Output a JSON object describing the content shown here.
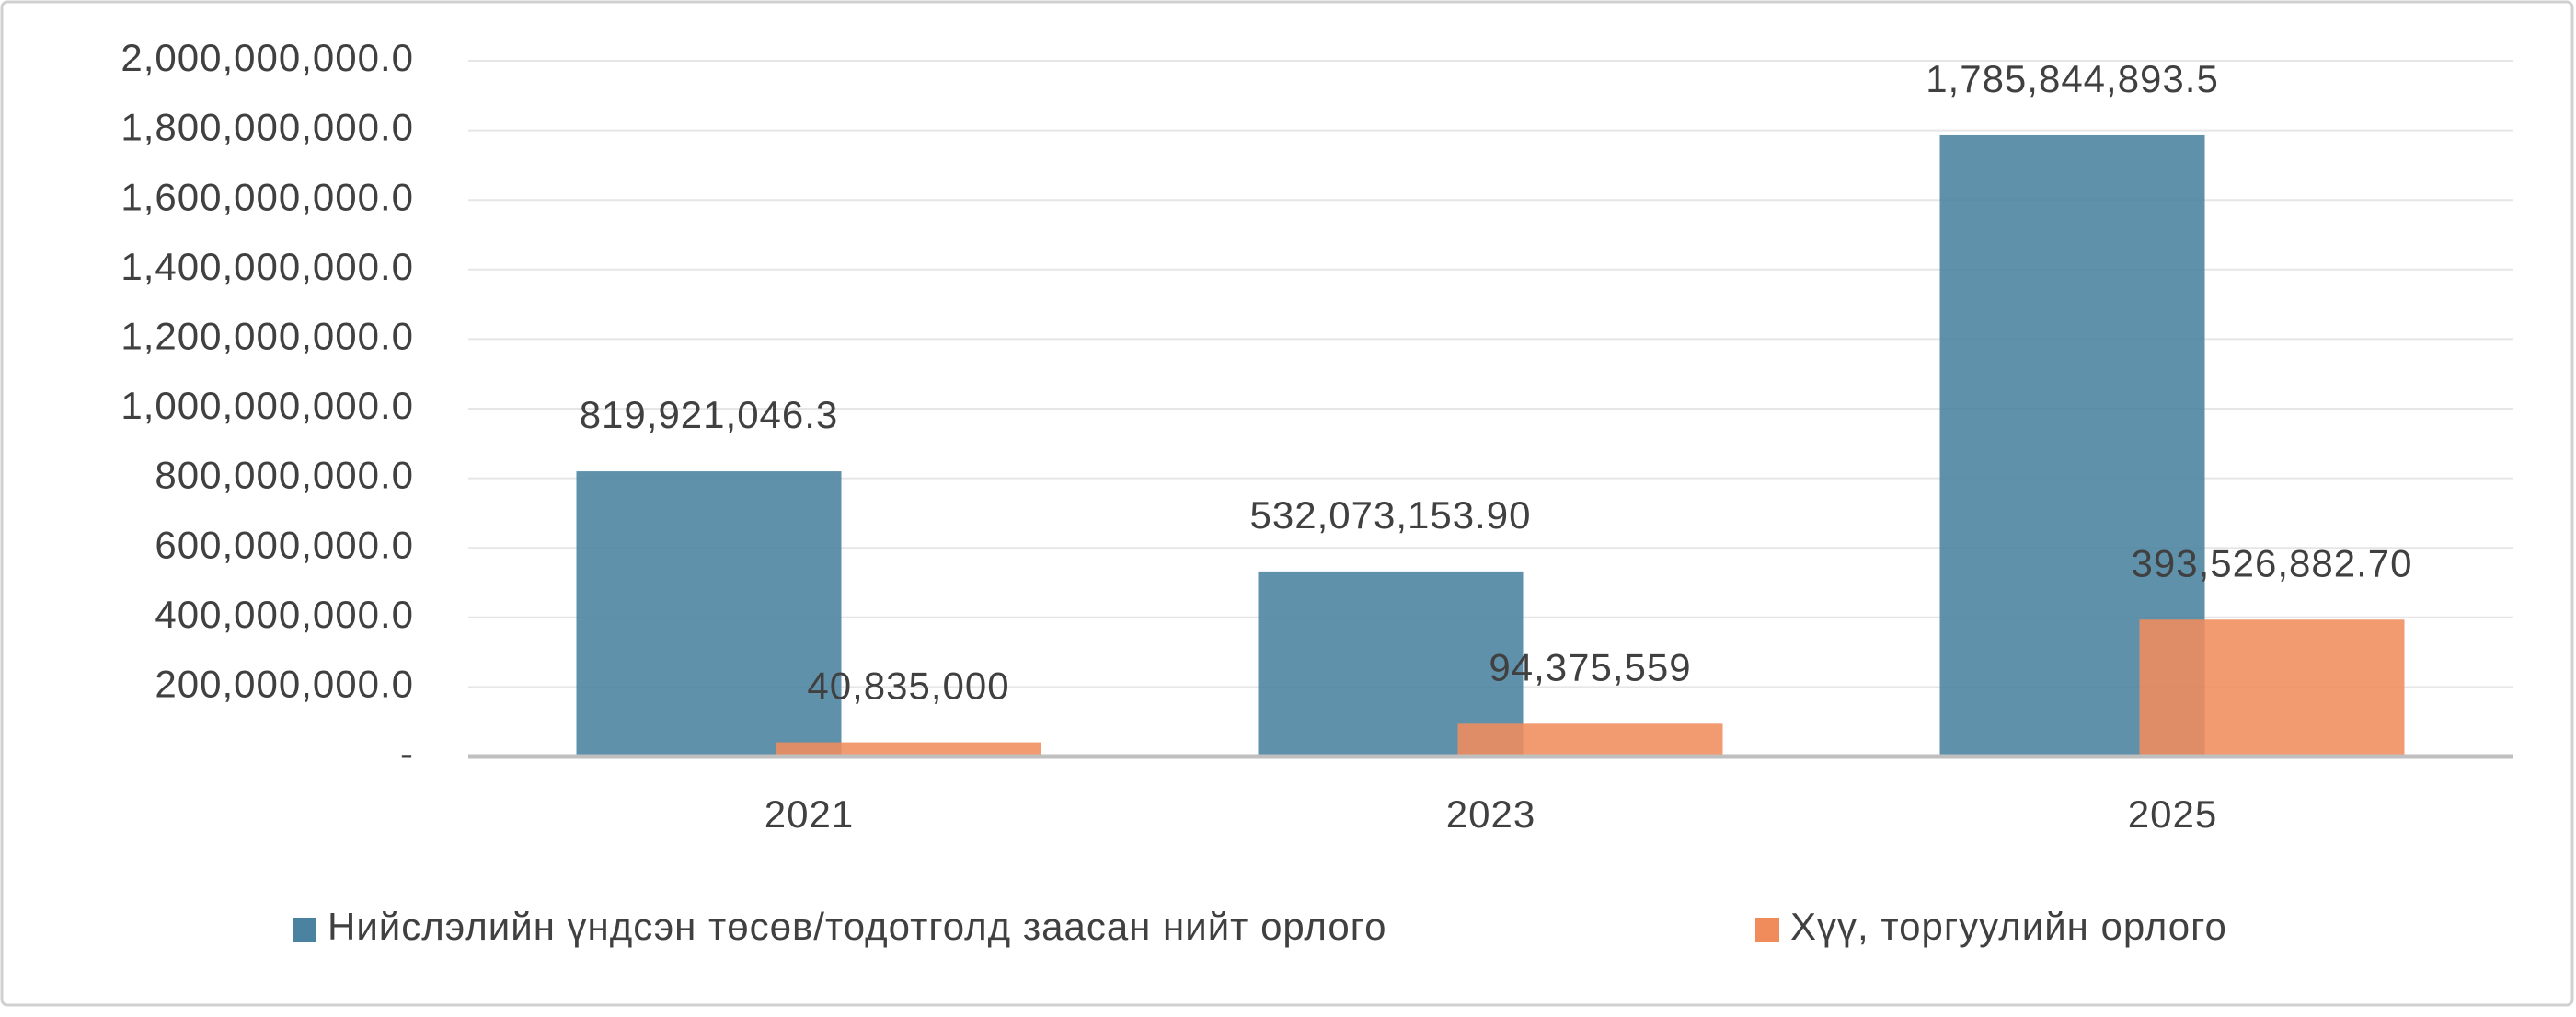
{
  "chart_data": {
    "type": "bar",
    "categories": [
      "2021",
      "2023",
      "2025"
    ],
    "series": [
      {
        "name": "Нийслэлийн үндсэн төсөв/тодотголд заасан нийт орлого",
        "color": "#4a829f",
        "values": [
          819921046.3,
          532073153.9,
          1785844893.5
        ],
        "value_labels": [
          "819,921,046.3",
          "532,073,153.90",
          "1,785,844,893.5"
        ]
      },
      {
        "name": "Хүү, торгуулийн орлого",
        "color": "#f08c5c",
        "values": [
          40835000,
          94375559,
          393526882.7
        ],
        "value_labels": [
          "40,835,000",
          "94,375,559",
          "393,526,882.70"
        ]
      }
    ],
    "ylim": [
      0,
      2000000000
    ],
    "yticks": [
      {
        "value": 0,
        "label": "-"
      },
      {
        "value": 200000000,
        "label": "200,000,000.0"
      },
      {
        "value": 400000000,
        "label": "400,000,000.0"
      },
      {
        "value": 600000000,
        "label": "600,000,000.0"
      },
      {
        "value": 800000000,
        "label": "800,000,000.0"
      },
      {
        "value": 1000000000,
        "label": "1,000,000,000.0"
      },
      {
        "value": 1200000000,
        "label": "1,200,000,000.0"
      },
      {
        "value": 1400000000,
        "label": "1,400,000,000.0"
      },
      {
        "value": 1600000000,
        "label": "1,600,000,000.0"
      },
      {
        "value": 1800000000,
        "label": "1,800,000,000.0"
      },
      {
        "value": 2000000000,
        "label": "2,000,000,000.0"
      }
    ],
    "grid": true,
    "legend": "bottom"
  }
}
